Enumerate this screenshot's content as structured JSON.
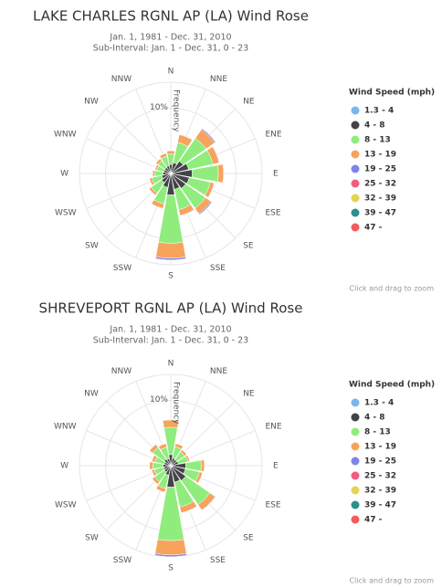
{
  "chart_data": [
    {
      "type": "windrose",
      "title": "LAKE CHARLES RGNL AP (LA) Wind Rose",
      "subtitle": [
        "Jan. 1, 1981 - Dec. 31, 2010",
        "Sub-Interval: Jan. 1 - Dec. 31, 0 - 23"
      ],
      "y_label": "Frequency",
      "legend_title": "Wind Speed (mph)",
      "credits": "Click and drag to zoom",
      "categories": [
        "N",
        "NNE",
        "NE",
        "ENE",
        "E",
        "ESE",
        "SE",
        "SSE",
        "S",
        "SSW",
        "SW",
        "WSW",
        "W",
        "WNW",
        "NW",
        "NNW"
      ],
      "ylim": [
        0,
        14
      ],
      "yticks": [
        {
          "value": 10,
          "label": "10%"
        }
      ],
      "grid": true,
      "legend": "right",
      "series": [
        {
          "name": "1.3 - 4",
          "color": "#7cb5ec",
          "values": [
            0.2,
            0.2,
            0.3,
            0.3,
            0.3,
            0.3,
            0.3,
            0.3,
            0.3,
            0.2,
            0.2,
            0.2,
            0.2,
            0.2,
            0.2,
            0.2
          ]
        },
        {
          "name": "4 - 8",
          "color": "#434348",
          "values": [
            1.2,
            1.5,
            2,
            2.5,
            3,
            2.6,
            2.5,
            2.2,
            3,
            2,
            1.5,
            1.2,
            1,
            0.9,
            0.9,
            1
          ]
        },
        {
          "name": "8 - 13",
          "color": "#90ed7d",
          "values": [
            1.6,
            3.2,
            4.3,
            3.8,
            4,
            3.3,
            3.7,
            3.2,
            7.4,
            2.6,
            2,
            1.6,
            1.3,
            1.1,
            1.3,
            1.5
          ]
        },
        {
          "name": "13 - 19",
          "color": "#f7a35c",
          "values": [
            0.5,
            1.2,
            1.6,
            1,
            0.8,
            0.6,
            1,
            0.9,
            2.3,
            0.7,
            0.4,
            0.4,
            0.3,
            0.3,
            0.4,
            0.5
          ]
        },
        {
          "name": "19 - 25",
          "color": "#8085e9",
          "values": [
            0,
            0.1,
            0.2,
            0.1,
            0.1,
            0.1,
            0.2,
            0.1,
            0.3,
            0.1,
            0,
            0,
            0,
            0,
            0,
            0
          ]
        },
        {
          "name": "25 - 32",
          "color": "#f15c80",
          "values": [
            0,
            0,
            0,
            0,
            0,
            0,
            0,
            0,
            0,
            0,
            0,
            0,
            0,
            0,
            0,
            0
          ]
        },
        {
          "name": "32 - 39",
          "color": "#e4d354",
          "values": [
            0,
            0,
            0,
            0,
            0,
            0,
            0,
            0,
            0,
            0,
            0,
            0,
            0,
            0,
            0,
            0
          ]
        },
        {
          "name": "39 - 47",
          "color": "#2b908f",
          "values": [
            0,
            0,
            0,
            0,
            0,
            0,
            0,
            0,
            0,
            0,
            0,
            0,
            0,
            0,
            0,
            0
          ]
        },
        {
          "name": "47 -",
          "color": "#f45b5b",
          "values": [
            0,
            0,
            0,
            0,
            0,
            0,
            0,
            0,
            0,
            0,
            0,
            0,
            0,
            0,
            0,
            0
          ]
        }
      ]
    },
    {
      "type": "windrose",
      "title": "SHREVEPORT RGNL AP (LA) Wind Rose",
      "subtitle": [
        "Jan. 1, 1981 - Dec. 31, 2010",
        "Sub-Interval: Jan. 1 - Dec. 31, 0 - 23"
      ],
      "y_label": "Frequency",
      "legend_title": "Wind Speed (mph)",
      "credits": "Click and drag to zoom",
      "categories": [
        "N",
        "NNE",
        "NE",
        "ENE",
        "E",
        "ESE",
        "SE",
        "SSE",
        "S",
        "SSW",
        "SW",
        "WSW",
        "W",
        "WNW",
        "NW",
        "NNW"
      ],
      "ylim": [
        0,
        14
      ],
      "yticks": [
        {
          "value": 10,
          "label": "10%"
        }
      ],
      "grid": true,
      "legend": "right",
      "series": [
        {
          "name": "1.3 - 4",
          "color": "#7cb5ec",
          "values": [
            0.2,
            0.2,
            0.2,
            0.2,
            0.3,
            0.3,
            0.3,
            0.3,
            0.3,
            0.2,
            0.2,
            0.2,
            0.2,
            0.2,
            0.2,
            0.2
          ]
        },
        {
          "name": "4 - 8",
          "color": "#434348",
          "values": [
            1.5,
            1,
            0.9,
            1,
            2,
            2,
            2.5,
            2.3,
            3,
            1.3,
            1,
            0.9,
            1,
            0.8,
            1,
            0.9
          ]
        },
        {
          "name": "8 - 13",
          "color": "#90ed7d",
          "values": [
            4.2,
            1.8,
            1.5,
            1.5,
            2.4,
            2.2,
            4.5,
            3.9,
            8.2,
            2.1,
            1.8,
            1.5,
            1.6,
            1.5,
            2.2,
            1.8
          ]
        },
        {
          "name": "13 - 19",
          "color": "#f7a35c",
          "values": [
            1.1,
            0.5,
            0.4,
            0.3,
            0.5,
            0.5,
            1,
            0.9,
            2.2,
            0.6,
            0.5,
            0.4,
            0.5,
            0.5,
            0.6,
            0.6
          ]
        },
        {
          "name": "19 - 25",
          "color": "#8085e9",
          "values": [
            0.1,
            0,
            0,
            0,
            0,
            0,
            0.1,
            0.1,
            0.3,
            0,
            0,
            0,
            0,
            0,
            0,
            0
          ]
        },
        {
          "name": "25 - 32",
          "color": "#f15c80",
          "values": [
            0,
            0,
            0,
            0,
            0,
            0,
            0,
            0,
            0,
            0,
            0,
            0,
            0,
            0,
            0,
            0
          ]
        },
        {
          "name": "32 - 39",
          "color": "#e4d354",
          "values": [
            0,
            0,
            0,
            0,
            0,
            0,
            0,
            0,
            0,
            0,
            0,
            0,
            0,
            0,
            0,
            0
          ]
        },
        {
          "name": "39 - 47",
          "color": "#2b908f",
          "values": [
            0,
            0,
            0,
            0,
            0,
            0,
            0,
            0,
            0,
            0,
            0,
            0,
            0,
            0,
            0,
            0
          ]
        },
        {
          "name": "47 -",
          "color": "#f45b5b",
          "values": [
            0,
            0,
            0,
            0,
            0,
            0,
            0,
            0,
            0,
            0,
            0,
            0,
            0,
            0,
            0,
            0
          ]
        }
      ]
    }
  ]
}
